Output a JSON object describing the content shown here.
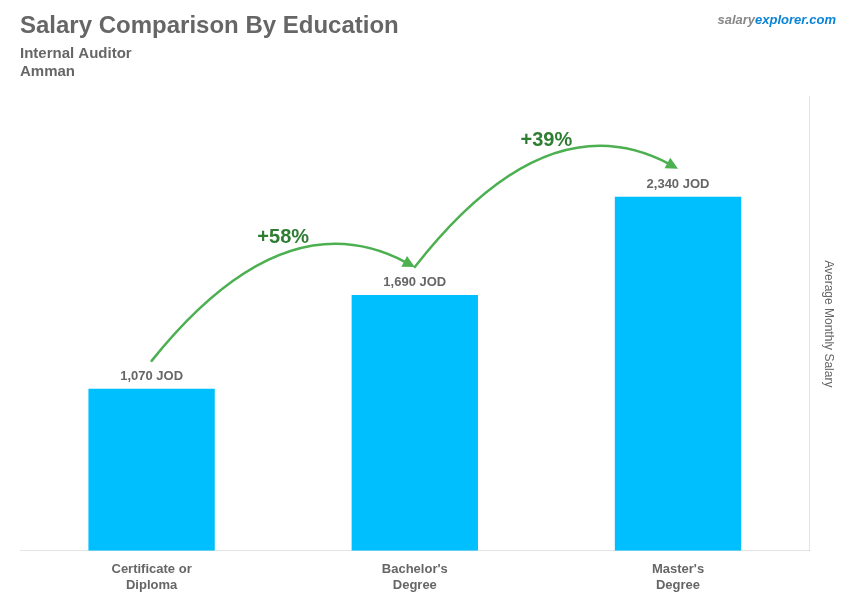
{
  "chart_data": {
    "type": "bar",
    "title": "Salary Comparison By Education",
    "subtitle": [
      "Internal Auditor",
      "Amman"
    ],
    "y_label": "Average Monthly Salary",
    "categories": [
      "Certificate or\nDiploma",
      "Bachelor's\nDegree",
      "Master's\nDegree"
    ],
    "values": [
      1070,
      1690,
      2340
    ],
    "value_labels": [
      "1,070 JOD",
      "1,690 JOD",
      "2,340 JOD"
    ],
    "data_labels": true,
    "color": "#00BFFF",
    "ylim": [
      0,
      3000
    ],
    "grid": false,
    "tick_labels": "x",
    "annotations": [
      {
        "text": "+58%",
        "from": "Certificate or\nDiploma",
        "to": "Bachelor's\nDegree"
      },
      {
        "text": "+39%",
        "from": "Bachelor's\nDegree",
        "to": "Master's\nDegree"
      },
      {
        "text": "salary"
      },
      {
        "text": "explorer.com"
      }
    ]
  }
}
